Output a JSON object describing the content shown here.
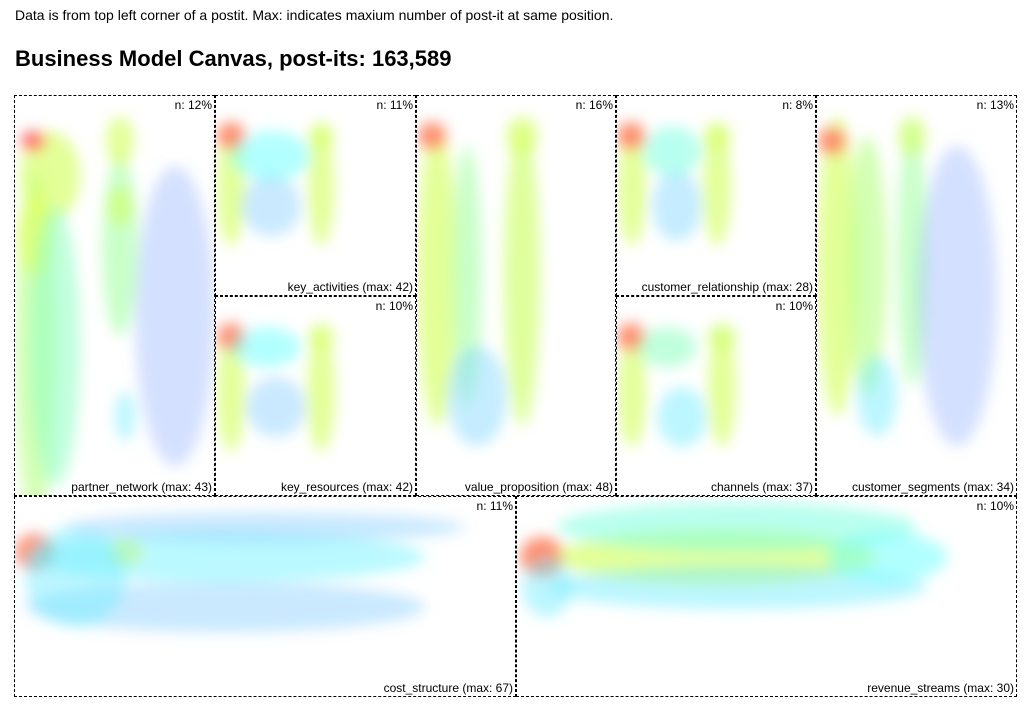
{
  "header": {
    "note": "Data is from top left corner of a postit. Max: indicates maxium number of post-it at same position.",
    "title": "Business Model Canvas, post-its: 163,589"
  },
  "chart_data": {
    "type": "heatmap",
    "title": "Business Model Canvas, post-its: 163,589",
    "colorscale": [
      "#9999ff",
      "#66ffff",
      "#ccff66",
      "#ffff66",
      "#ff6666"
    ],
    "panels": [
      {
        "id": "partner_network",
        "label": "partner_network (max: 43)",
        "n": "n: 12%",
        "max": 43
      },
      {
        "id": "key_activities",
        "label": "key_activities (max: 42)",
        "n": "n: 11%",
        "max": 42
      },
      {
        "id": "key_resources",
        "label": "key_resources (max: 42)",
        "n": "n: 10%",
        "max": 42
      },
      {
        "id": "value_proposition",
        "label": "value_proposition (max: 48)",
        "n": "n: 16%",
        "max": 48
      },
      {
        "id": "customer_relationship",
        "label": "customer_relationship (max: 28)",
        "n": "n: 8%",
        "max": 28
      },
      {
        "id": "channels",
        "label": "channels (max: 37)",
        "n": "n: 10%",
        "max": 37
      },
      {
        "id": "customer_segments",
        "label": "customer_segments (max: 34)",
        "n": "n: 13%",
        "max": 34
      },
      {
        "id": "cost_structure",
        "label": "cost_structure (max: 67)",
        "n": "n: 11%",
        "max": 67
      },
      {
        "id": "revenue_streams",
        "label": "revenue_streams (max: 30)",
        "n": "n: 10%",
        "max": 30
      }
    ]
  }
}
